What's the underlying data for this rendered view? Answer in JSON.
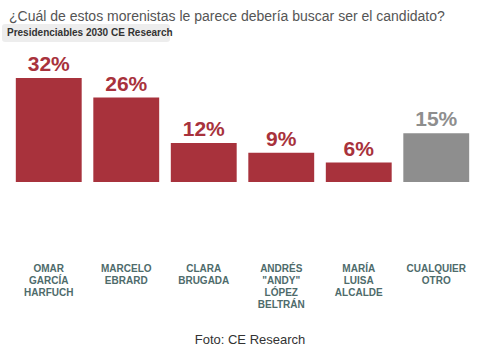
{
  "chart_data": {
    "type": "bar",
    "title": "¿Cuál de estos morenistas le parece debería buscar ser el candidato?",
    "annotations": [
      "Presidenciables 2030 CE Research",
      "Foto: CE Research"
    ],
    "categories": [
      "OMAR GARCÍA HARFUCH",
      "MARCELO EBRARD",
      "CLARA BRUGADA",
      "ANDRÉS \"ANDY\" LÓPEZ BELTRÁN",
      "MARÍA LUISA ALCALDE",
      "CUALQUIER OTRO"
    ],
    "values": [
      32,
      26,
      12,
      9,
      6,
      15
    ],
    "value_labels": [
      "32%",
      "26%",
      "12%",
      "9%",
      "6%",
      "15%"
    ],
    "colors": [
      "#a8323c",
      "#a8323c",
      "#a8323c",
      "#a8323c",
      "#a8323c",
      "#8e8e8e"
    ],
    "ylim": [
      0,
      32
    ],
    "grid": false,
    "data_labels": true,
    "tick_labels": "x"
  }
}
